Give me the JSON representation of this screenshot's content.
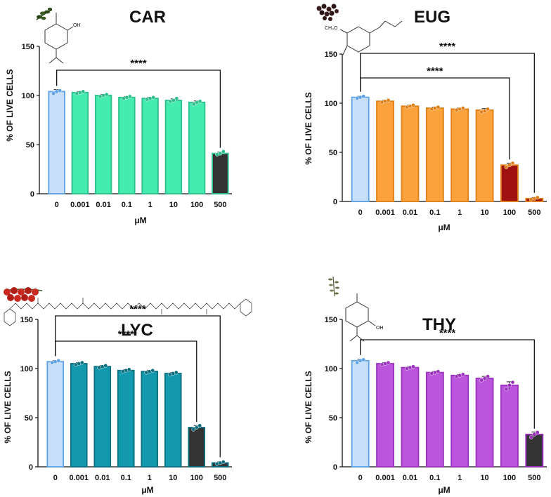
{
  "colors": {
    "control_fill": "#c8dffa",
    "control_stroke": "#5ba1e6",
    "dark_fill": "#333333",
    "dark_red": "#a01212"
  },
  "chart_data": [
    {
      "id": "car",
      "type": "bar",
      "title": "CAR",
      "xlabel": "μM",
      "ylabel": "% OF LIVE CELLS",
      "categories": [
        "0",
        "0.001",
        "0.01",
        "0.1",
        "1",
        "10",
        "100",
        "500"
      ],
      "values": [
        104,
        103,
        100,
        98,
        97,
        95,
        93,
        41
      ],
      "points": [
        [
          102,
          104,
          105
        ],
        [
          102,
          103,
          104
        ],
        [
          99,
          100,
          101
        ],
        [
          97,
          98,
          99
        ],
        [
          96,
          97,
          98
        ],
        [
          94,
          95,
          97
        ],
        [
          91,
          93,
          94
        ],
        [
          40,
          41,
          43
        ]
      ],
      "errors": [
        2,
        1,
        1,
        1,
        1,
        1.5,
        1.5,
        1.5
      ],
      "ylim": [
        0,
        150
      ],
      "yticks": [
        0,
        50,
        100,
        150
      ],
      "bar_fill": "#45ecb0",
      "bar_stroke": "#2cbf8b",
      "dark_index": 6.9,
      "molecule_icon": "carvacrol-structure-icon",
      "plant_icon": "oregano-sprig-icon",
      "significance": [
        {
          "from": 0,
          "to": 7,
          "label": "****"
        }
      ]
    },
    {
      "id": "eug",
      "type": "bar",
      "title": "EUG",
      "xlabel": "μM",
      "ylabel": "% OF LIVE CELLS",
      "categories": [
        "0",
        "0.001",
        "0.01",
        "0.1",
        "1",
        "10",
        "100",
        "500"
      ],
      "values": [
        106,
        102,
        97,
        95,
        94,
        93,
        37,
        3
      ],
      "points": [
        [
          105,
          106,
          107
        ],
        [
          101,
          102,
          103
        ],
        [
          96,
          97,
          98
        ],
        [
          94,
          95,
          96
        ],
        [
          93,
          94,
          95
        ],
        [
          91,
          92,
          94
        ],
        [
          35,
          37,
          39
        ],
        [
          2,
          3,
          4
        ]
      ],
      "errors": [
        1,
        1,
        1,
        1,
        1,
        1.5,
        2,
        1
      ],
      "ylim": [
        0,
        150
      ],
      "yticks": [
        0,
        50,
        100,
        150
      ],
      "bar_fill": "#fba23d",
      "bar_stroke": "#e07f17",
      "molecule_icon": "eugenol-structure-icon",
      "plant_icon": "clove-buds-icon",
      "significance": [
        {
          "from": 0,
          "to": 7,
          "label": "****"
        },
        {
          "from": 0,
          "to": 6,
          "label": "****"
        }
      ]
    },
    {
      "id": "lyc",
      "type": "bar",
      "title": "LYC",
      "xlabel": "μM",
      "ylabel": "% OF LIVE CELLS",
      "categories": [
        "0",
        "0.001",
        "0.01",
        "0.1",
        "1",
        "10",
        "100",
        "500"
      ],
      "values": [
        107,
        105,
        102,
        98,
        97,
        95,
        40,
        4
      ],
      "points": [
        [
          106,
          107,
          108
        ],
        [
          104,
          105,
          106
        ],
        [
          101,
          102,
          103
        ],
        [
          97,
          98,
          99
        ],
        [
          96,
          97,
          98
        ],
        [
          94,
          95,
          96
        ],
        [
          38,
          40,
          42
        ],
        [
          3,
          4,
          5
        ]
      ],
      "errors": [
        1,
        1,
        1,
        1,
        1,
        1,
        2,
        1
      ],
      "ylim": [
        0,
        150
      ],
      "yticks": [
        0,
        50,
        100,
        150
      ],
      "bar_fill": "#1399ad",
      "bar_stroke": "#0b6f80",
      "molecule_icon": "lycopene-structure-icon",
      "plant_icon": "cherry-tomatoes-icon",
      "significance": [
        {
          "from": 0,
          "to": 7,
          "label": "****"
        },
        {
          "from": 0,
          "to": 6,
          "label": "****"
        }
      ]
    },
    {
      "id": "thy",
      "type": "bar",
      "title": "THY",
      "xlabel": "μM",
      "ylabel": "% OF LIVE CELLS",
      "categories": [
        "0",
        "0.001",
        "0.01",
        "0.1",
        "1",
        "10",
        "100",
        "500"
      ],
      "values": [
        108,
        105,
        101,
        96,
        93,
        90,
        83,
        33
      ],
      "points": [
        [
          106,
          108,
          109
        ],
        [
          104,
          105,
          106
        ],
        [
          100,
          101,
          102
        ],
        [
          95,
          96,
          97
        ],
        [
          92,
          93,
          94
        ],
        [
          88,
          90,
          92
        ],
        [
          79,
          83,
          86
        ],
        [
          30,
          33,
          35
        ]
      ],
      "errors": [
        1.5,
        1,
        1,
        1,
        1,
        2,
        3.5,
        2.5
      ],
      "ylim": [
        0,
        150
      ],
      "yticks": [
        0,
        50,
        100,
        150
      ],
      "bar_fill": "#bb55dc",
      "bar_stroke": "#9a30bd",
      "molecule_icon": "thymol-structure-icon",
      "plant_icon": "thyme-sprig-icon",
      "significance": [
        {
          "from": 0,
          "to": 7,
          "label": "****"
        }
      ]
    }
  ]
}
